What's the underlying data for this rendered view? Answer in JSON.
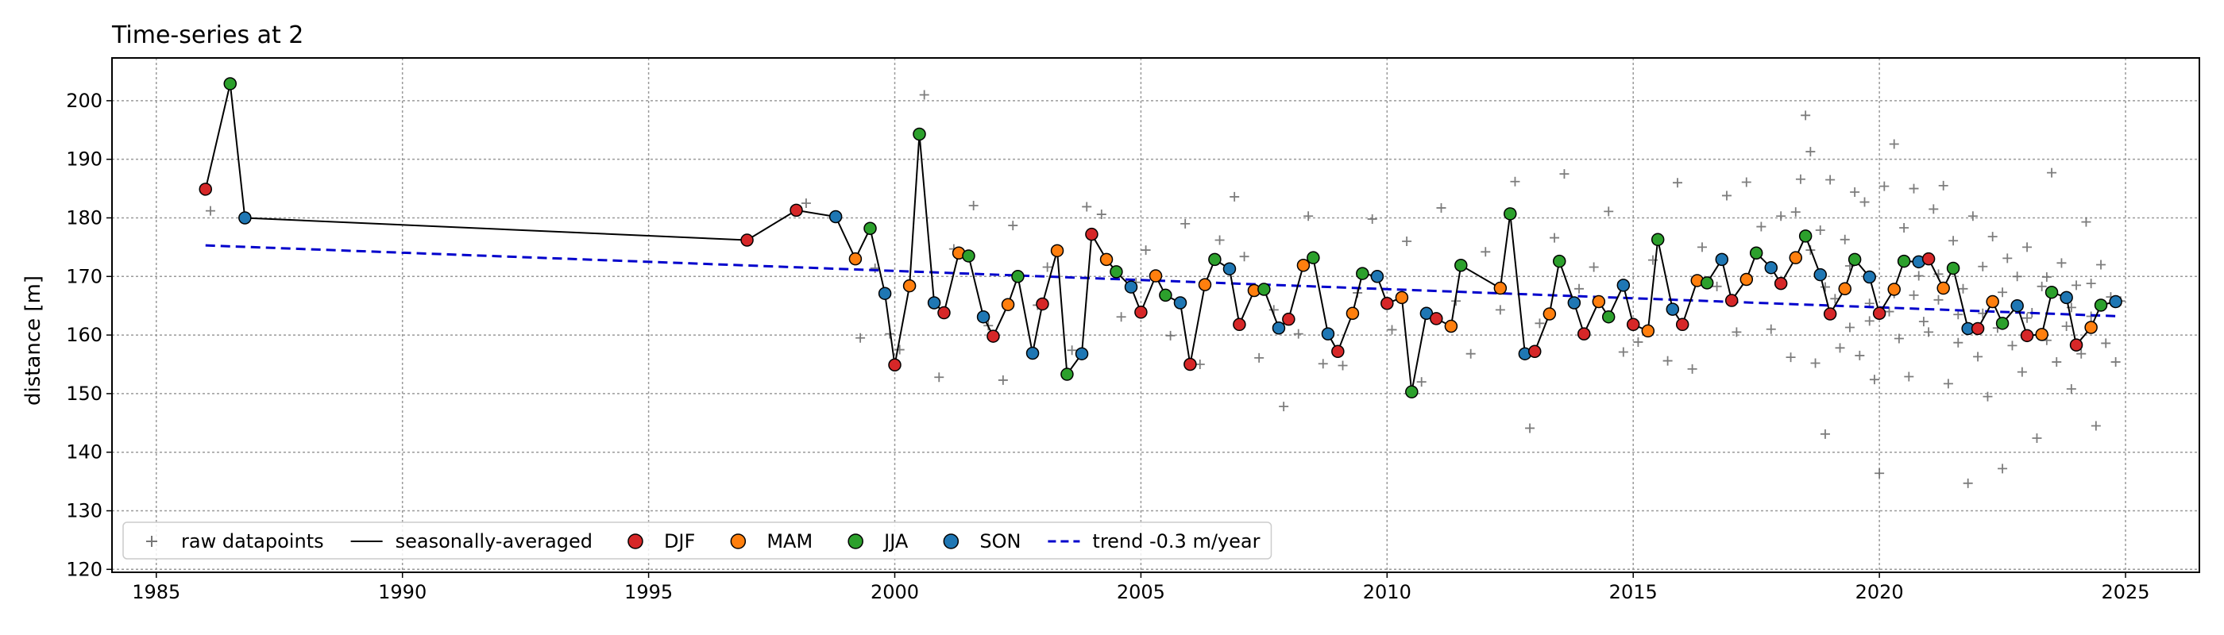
{
  "chart_data": {
    "type": "scatter",
    "title": "Time-series at 2",
    "xlabel": "",
    "ylabel": "distance [m]",
    "xlim": [
      1984.1,
      2026.5
    ],
    "ylim": [
      119.5,
      207.3
    ],
    "xticks": [
      1985,
      1990,
      1995,
      2000,
      2005,
      2010,
      2015,
      2020,
      2025
    ],
    "yticks": [
      120,
      130,
      140,
      150,
      160,
      170,
      180,
      190,
      200
    ],
    "grid": true,
    "legend_position": "bottom-left",
    "legend": [
      {
        "label": "raw datapoints",
        "kind": "plus",
        "color": "#555555"
      },
      {
        "label": "seasonally-averaged",
        "kind": "line",
        "color": "#000000"
      },
      {
        "label": "DJF",
        "kind": "dot",
        "color": "#d62728"
      },
      {
        "label": "MAM",
        "kind": "dot",
        "color": "#ff7f0e"
      },
      {
        "label": "JJA",
        "kind": "dot",
        "color": "#2ca02c"
      },
      {
        "label": "SON",
        "kind": "dot",
        "color": "#1f77b4"
      },
      {
        "label": "trend -0.3 m/year",
        "kind": "dashed",
        "color": "#0000cc"
      }
    ],
    "season_colors": {
      "DJF": "#d62728",
      "MAM": "#ff7f0e",
      "JJA": "#2ca02c",
      "SON": "#1f77b4"
    },
    "trend": {
      "x": [
        1986.0,
        2024.9
      ],
      "y": [
        175.3,
        163.2
      ],
      "rate": "-0.3 m/year",
      "color": "#0000cc"
    },
    "seasonal_series": [
      {
        "x": 1986.0,
        "y": 184.9,
        "s": "DJF"
      },
      {
        "x": 1986.5,
        "y": 202.9,
        "s": "JJA"
      },
      {
        "x": 1986.8,
        "y": 180.0,
        "s": "SON"
      },
      {
        "x": 1997.0,
        "y": 176.2,
        "s": "DJF"
      },
      {
        "x": 1998.0,
        "y": 181.3,
        "s": "DJF"
      },
      {
        "x": 1998.8,
        "y": 180.2,
        "s": "SON"
      },
      {
        "x": 1999.2,
        "y": 173.0,
        "s": "MAM"
      },
      {
        "x": 1999.5,
        "y": 178.2,
        "s": "JJA"
      },
      {
        "x": 1999.8,
        "y": 167.1,
        "s": "SON"
      },
      {
        "x": 2000.0,
        "y": 154.9,
        "s": "DJF"
      },
      {
        "x": 2000.3,
        "y": 168.4,
        "s": "MAM"
      },
      {
        "x": 2000.5,
        "y": 194.3,
        "s": "JJA"
      },
      {
        "x": 2000.8,
        "y": 165.5,
        "s": "SON"
      },
      {
        "x": 2001.0,
        "y": 163.8,
        "s": "DJF"
      },
      {
        "x": 2001.3,
        "y": 174.0,
        "s": "MAM"
      },
      {
        "x": 2001.5,
        "y": 173.5,
        "s": "JJA"
      },
      {
        "x": 2001.8,
        "y": 163.1,
        "s": "SON"
      },
      {
        "x": 2002.0,
        "y": 159.8,
        "s": "DJF"
      },
      {
        "x": 2002.3,
        "y": 165.2,
        "s": "MAM"
      },
      {
        "x": 2002.5,
        "y": 170.0,
        "s": "JJA"
      },
      {
        "x": 2002.8,
        "y": 156.9,
        "s": "SON"
      },
      {
        "x": 2003.0,
        "y": 165.3,
        "s": "DJF"
      },
      {
        "x": 2003.3,
        "y": 174.4,
        "s": "MAM"
      },
      {
        "x": 2003.5,
        "y": 153.3,
        "s": "JJA"
      },
      {
        "x": 2003.8,
        "y": 156.8,
        "s": "SON"
      },
      {
        "x": 2004.0,
        "y": 177.2,
        "s": "DJF"
      },
      {
        "x": 2004.3,
        "y": 172.9,
        "s": "MAM"
      },
      {
        "x": 2004.5,
        "y": 170.8,
        "s": "JJA"
      },
      {
        "x": 2004.8,
        "y": 168.2,
        "s": "SON"
      },
      {
        "x": 2005.0,
        "y": 163.9,
        "s": "DJF"
      },
      {
        "x": 2005.3,
        "y": 170.1,
        "s": "MAM"
      },
      {
        "x": 2005.5,
        "y": 166.8,
        "s": "JJA"
      },
      {
        "x": 2005.8,
        "y": 165.5,
        "s": "SON"
      },
      {
        "x": 2006.0,
        "y": 155.0,
        "s": "DJF"
      },
      {
        "x": 2006.3,
        "y": 168.6,
        "s": "MAM"
      },
      {
        "x": 2006.5,
        "y": 172.9,
        "s": "JJA"
      },
      {
        "x": 2006.8,
        "y": 171.3,
        "s": "SON"
      },
      {
        "x": 2007.0,
        "y": 161.8,
        "s": "DJF"
      },
      {
        "x": 2007.3,
        "y": 167.6,
        "s": "MAM"
      },
      {
        "x": 2007.5,
        "y": 167.8,
        "s": "JJA"
      },
      {
        "x": 2007.8,
        "y": 161.2,
        "s": "SON"
      },
      {
        "x": 2008.0,
        "y": 162.7,
        "s": "DJF"
      },
      {
        "x": 2008.3,
        "y": 171.9,
        "s": "MAM"
      },
      {
        "x": 2008.5,
        "y": 173.2,
        "s": "JJA"
      },
      {
        "x": 2008.8,
        "y": 160.2,
        "s": "SON"
      },
      {
        "x": 2009.0,
        "y": 157.2,
        "s": "DJF"
      },
      {
        "x": 2009.3,
        "y": 163.7,
        "s": "MAM"
      },
      {
        "x": 2009.5,
        "y": 170.5,
        "s": "JJA"
      },
      {
        "x": 2009.8,
        "y": 170.0,
        "s": "SON"
      },
      {
        "x": 2010.0,
        "y": 165.4,
        "s": "DJF"
      },
      {
        "x": 2010.3,
        "y": 166.4,
        "s": "MAM"
      },
      {
        "x": 2010.5,
        "y": 150.3,
        "s": "JJA"
      },
      {
        "x": 2010.8,
        "y": 163.7,
        "s": "SON"
      },
      {
        "x": 2011.0,
        "y": 162.8,
        "s": "DJF"
      },
      {
        "x": 2011.3,
        "y": 161.5,
        "s": "MAM"
      },
      {
        "x": 2011.5,
        "y": 171.9,
        "s": "JJA"
      },
      {
        "x": 2012.3,
        "y": 168.0,
        "s": "MAM"
      },
      {
        "x": 2012.5,
        "y": 180.7,
        "s": "JJA"
      },
      {
        "x": 2012.8,
        "y": 156.8,
        "s": "SON"
      },
      {
        "x": 2013.0,
        "y": 157.2,
        "s": "DJF"
      },
      {
        "x": 2013.3,
        "y": 163.6,
        "s": "MAM"
      },
      {
        "x": 2013.5,
        "y": 172.6,
        "s": "JJA"
      },
      {
        "x": 2013.8,
        "y": 165.5,
        "s": "SON"
      },
      {
        "x": 2014.0,
        "y": 160.2,
        "s": "DJF"
      },
      {
        "x": 2014.3,
        "y": 165.7,
        "s": "MAM"
      },
      {
        "x": 2014.5,
        "y": 163.1,
        "s": "JJA"
      },
      {
        "x": 2014.8,
        "y": 168.5,
        "s": "SON"
      },
      {
        "x": 2015.0,
        "y": 161.8,
        "s": "DJF"
      },
      {
        "x": 2015.3,
        "y": 160.7,
        "s": "MAM"
      },
      {
        "x": 2015.5,
        "y": 176.3,
        "s": "JJA"
      },
      {
        "x": 2015.8,
        "y": 164.4,
        "s": "SON"
      },
      {
        "x": 2016.0,
        "y": 161.8,
        "s": "DJF"
      },
      {
        "x": 2016.3,
        "y": 169.3,
        "s": "MAM"
      },
      {
        "x": 2016.5,
        "y": 168.9,
        "s": "JJA"
      },
      {
        "x": 2016.8,
        "y": 172.9,
        "s": "SON"
      },
      {
        "x": 2017.0,
        "y": 165.9,
        "s": "DJF"
      },
      {
        "x": 2017.3,
        "y": 169.5,
        "s": "MAM"
      },
      {
        "x": 2017.5,
        "y": 174.0,
        "s": "JJA"
      },
      {
        "x": 2017.8,
        "y": 171.5,
        "s": "SON"
      },
      {
        "x": 2018.0,
        "y": 168.8,
        "s": "DJF"
      },
      {
        "x": 2018.3,
        "y": 173.2,
        "s": "MAM"
      },
      {
        "x": 2018.5,
        "y": 176.9,
        "s": "JJA"
      },
      {
        "x": 2018.8,
        "y": 170.3,
        "s": "SON"
      },
      {
        "x": 2019.0,
        "y": 163.6,
        "s": "DJF"
      },
      {
        "x": 2019.3,
        "y": 167.9,
        "s": "MAM"
      },
      {
        "x": 2019.5,
        "y": 172.9,
        "s": "JJA"
      },
      {
        "x": 2019.8,
        "y": 169.9,
        "s": "SON"
      },
      {
        "x": 2020.0,
        "y": 163.7,
        "s": "DJF"
      },
      {
        "x": 2020.3,
        "y": 167.8,
        "s": "MAM"
      },
      {
        "x": 2020.5,
        "y": 172.6,
        "s": "JJA"
      },
      {
        "x": 2020.8,
        "y": 172.5,
        "s": "SON"
      },
      {
        "x": 2021.0,
        "y": 173.0,
        "s": "DJF"
      },
      {
        "x": 2021.3,
        "y": 168.0,
        "s": "MAM"
      },
      {
        "x": 2021.5,
        "y": 171.4,
        "s": "JJA"
      },
      {
        "x": 2021.8,
        "y": 161.1,
        "s": "SON"
      },
      {
        "x": 2022.0,
        "y": 161.1,
        "s": "DJF"
      },
      {
        "x": 2022.3,
        "y": 165.7,
        "s": "MAM"
      },
      {
        "x": 2022.5,
        "y": 162.0,
        "s": "JJA"
      },
      {
        "x": 2022.8,
        "y": 165.0,
        "s": "SON"
      },
      {
        "x": 2023.0,
        "y": 159.9,
        "s": "DJF"
      },
      {
        "x": 2023.3,
        "y": 160.1,
        "s": "MAM"
      },
      {
        "x": 2023.5,
        "y": 167.3,
        "s": "JJA"
      },
      {
        "x": 2023.8,
        "y": 166.4,
        "s": "SON"
      },
      {
        "x": 2024.0,
        "y": 158.3,
        "s": "DJF"
      },
      {
        "x": 2024.3,
        "y": 161.3,
        "s": "MAM"
      },
      {
        "x": 2024.5,
        "y": 165.1,
        "s": "JJA"
      },
      {
        "x": 2024.8,
        "y": 165.7,
        "s": "SON"
      }
    ],
    "raw_points": [
      [
        1986.1,
        181.2
      ],
      [
        1986.5,
        203.0
      ],
      [
        1998.2,
        182.5
      ],
      [
        1999.3,
        159.5
      ],
      [
        1999.6,
        171.4
      ],
      [
        1999.9,
        160.2
      ],
      [
        2000.1,
        157.5
      ],
      [
        2000.6,
        201.0
      ],
      [
        2000.9,
        152.8
      ],
      [
        2001.2,
        174.7
      ],
      [
        2001.6,
        182.1
      ],
      [
        2001.9,
        161.6
      ],
      [
        2002.2,
        152.3
      ],
      [
        2002.4,
        178.7
      ],
      [
        2002.9,
        165.1
      ],
      [
        2003.1,
        171.6
      ],
      [
        2003.6,
        157.4
      ],
      [
        2003.9,
        181.9
      ],
      [
        2004.2,
        180.6
      ],
      [
        2004.6,
        163.1
      ],
      [
        2004.9,
        169.0
      ],
      [
        2005.1,
        174.5
      ],
      [
        2005.6,
        159.9
      ],
      [
        2005.9,
        179.0
      ],
      [
        2006.2,
        155.0
      ],
      [
        2006.6,
        176.2
      ],
      [
        2006.9,
        183.6
      ],
      [
        2007.1,
        173.4
      ],
      [
        2007.4,
        156.1
      ],
      [
        2007.7,
        164.3
      ],
      [
        2007.9,
        147.8
      ],
      [
        2008.2,
        160.2
      ],
      [
        2008.4,
        180.3
      ],
      [
        2008.7,
        155.1
      ],
      [
        2009.1,
        154.8
      ],
      [
        2009.4,
        167.2
      ],
      [
        2009.7,
        179.8
      ],
      [
        2010.1,
        160.9
      ],
      [
        2010.4,
        176.0
      ],
      [
        2010.7,
        152.0
      ],
      [
        2011.1,
        181.7
      ],
      [
        2011.4,
        165.8
      ],
      [
        2011.7,
        156.8
      ],
      [
        2012.0,
        174.2
      ],
      [
        2012.3,
        164.3
      ],
      [
        2012.6,
        186.2
      ],
      [
        2012.9,
        144.1
      ],
      [
        2013.1,
        162.0
      ],
      [
        2013.4,
        176.6
      ],
      [
        2013.6,
        187.5
      ],
      [
        2013.9,
        167.9
      ],
      [
        2014.2,
        171.6
      ],
      [
        2014.5,
        181.1
      ],
      [
        2014.8,
        157.1
      ],
      [
        2015.1,
        158.8
      ],
      [
        2015.4,
        172.8
      ],
      [
        2015.7,
        155.6
      ],
      [
        2015.9,
        186.0
      ],
      [
        2016.2,
        154.2
      ],
      [
        2016.4,
        175.0
      ],
      [
        2016.7,
        168.3
      ],
      [
        2016.9,
        183.8
      ],
      [
        2017.1,
        160.5
      ],
      [
        2017.3,
        186.1
      ],
      [
        2017.6,
        178.5
      ],
      [
        2017.8,
        161.0
      ],
      [
        2018.0,
        180.3
      ],
      [
        2018.2,
        156.2
      ],
      [
        2018.3,
        181.0
      ],
      [
        2018.4,
        186.6
      ],
      [
        2018.5,
        197.5
      ],
      [
        2018.6,
        191.3
      ],
      [
        2018.7,
        155.2
      ],
      [
        2018.8,
        177.9
      ],
      [
        2018.9,
        143.1
      ],
      [
        2019.0,
        186.5
      ],
      [
        2019.1,
        166.2
      ],
      [
        2019.2,
        157.8
      ],
      [
        2019.3,
        176.3
      ],
      [
        2019.4,
        161.3
      ],
      [
        2019.5,
        184.4
      ],
      [
        2019.6,
        156.5
      ],
      [
        2019.7,
        182.7
      ],
      [
        2019.8,
        165.4
      ],
      [
        2019.9,
        152.4
      ],
      [
        2020.0,
        136.4
      ],
      [
        2020.1,
        185.4
      ],
      [
        2020.2,
        164.0
      ],
      [
        2020.3,
        192.6
      ],
      [
        2020.4,
        159.4
      ],
      [
        2020.5,
        178.3
      ],
      [
        2020.6,
        152.9
      ],
      [
        2020.7,
        185.0
      ],
      [
        2020.8,
        170.1
      ],
      [
        2020.9,
        162.3
      ],
      [
        2021.0,
        160.5
      ],
      [
        2021.1,
        181.5
      ],
      [
        2021.2,
        166.0
      ],
      [
        2021.3,
        185.5
      ],
      [
        2021.4,
        151.7
      ],
      [
        2021.5,
        176.1
      ],
      [
        2021.6,
        163.5
      ],
      [
        2021.7,
        167.9
      ],
      [
        2021.8,
        134.7
      ],
      [
        2021.9,
        180.3
      ],
      [
        2022.0,
        156.3
      ],
      [
        2022.1,
        171.7
      ],
      [
        2022.2,
        149.5
      ],
      [
        2022.3,
        176.8
      ],
      [
        2022.4,
        161.2
      ],
      [
        2022.5,
        137.2
      ],
      [
        2022.6,
        173.1
      ],
      [
        2022.7,
        158.2
      ],
      [
        2022.8,
        170.0
      ],
      [
        2022.9,
        153.7
      ],
      [
        2023.0,
        175.0
      ],
      [
        2023.1,
        163.8
      ],
      [
        2023.2,
        142.4
      ],
      [
        2023.3,
        168.3
      ],
      [
        2023.4,
        159.1
      ],
      [
        2023.5,
        187.7
      ],
      [
        2023.6,
        155.4
      ],
      [
        2023.7,
        172.3
      ],
      [
        2023.8,
        161.5
      ],
      [
        2023.9,
        150.8
      ],
      [
        2024.0,
        168.5
      ],
      [
        2024.1,
        156.8
      ],
      [
        2024.2,
        179.3
      ],
      [
        2024.3,
        163.2
      ],
      [
        2024.4,
        144.5
      ],
      [
        2024.5,
        172.0
      ],
      [
        2024.6,
        158.6
      ],
      [
        2024.7,
        166.5
      ],
      [
        2024.8,
        155.4
      ],
      [
        2024.9,
        165.8
      ],
      [
        2018.6,
        174.5
      ],
      [
        2019.4,
        171.8
      ],
      [
        2020.3,
        167.1
      ],
      [
        2021.2,
        170.4
      ],
      [
        2022.1,
        163.7
      ],
      [
        2023.0,
        162.9
      ],
      [
        2023.9,
        164.7
      ],
      [
        2018.9,
        168.2
      ],
      [
        2019.8,
        162.4
      ],
      [
        2020.7,
        166.8
      ],
      [
        2021.6,
        158.7
      ],
      [
        2022.5,
        167.3
      ],
      [
        2023.4,
        169.9
      ],
      [
        2024.3,
        168.8
      ]
    ]
  }
}
